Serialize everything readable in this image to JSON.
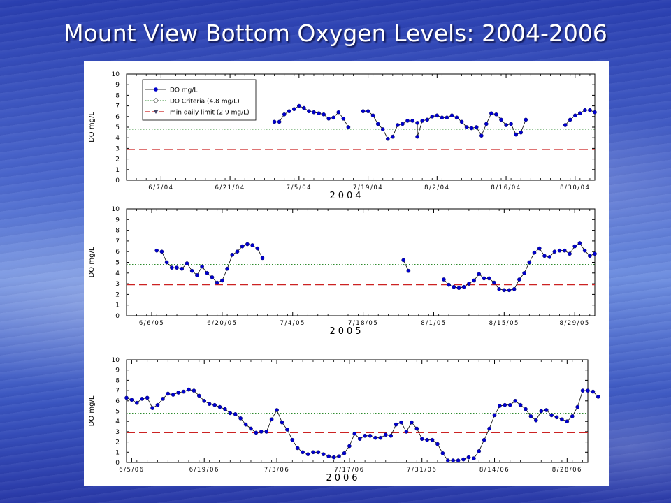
{
  "slide": {
    "title": "Mount View Bottom Oxygen Levels: 2004-2006"
  },
  "colors": {
    "series": "#0000cc",
    "criteria": "#2e8b2e",
    "limit": "#cc2222",
    "axis": "#000000"
  },
  "legend": {
    "placement": "top-left",
    "entries": [
      "DO mg/L",
      "DO Criteria (4.8 mg/L)",
      "min daily limit (2.9 mg/L)"
    ]
  },
  "chart_data": [
    {
      "type": "line",
      "year_label": "2004",
      "ylabel": "DO mg/L",
      "ylim": [
        0,
        10
      ],
      "yticks": [
        "0",
        "1",
        "2",
        "3",
        "4",
        "5",
        "6",
        "7",
        "8",
        "9",
        "10"
      ],
      "xlim": [
        "2004-05-31",
        "2004-09-03"
      ],
      "xticks": [
        {
          "date": "2004-06-07",
          "label": "6/7/04"
        },
        {
          "date": "2004-06-21",
          "label": "6/21/04"
        },
        {
          "date": "2004-07-05",
          "label": "7/5/04"
        },
        {
          "date": "2004-07-19",
          "label": "7/19/04"
        },
        {
          "date": "2004-08-02",
          "label": "8/2/04"
        },
        {
          "date": "2004-08-16",
          "label": "8/16/04"
        },
        {
          "date": "2004-08-30",
          "label": "8/30/04"
        }
      ],
      "criteria": 4.8,
      "min_limit": 2.9,
      "segments": [
        [
          [
            "2004-06-30",
            5.5
          ],
          [
            "2004-07-01",
            5.5
          ],
          [
            "2004-07-02",
            6.2
          ],
          [
            "2004-07-03",
            6.5
          ],
          [
            "2004-07-04",
            6.7
          ],
          [
            "2004-07-05",
            7.0
          ],
          [
            "2004-07-06",
            6.8
          ],
          [
            "2004-07-07",
            6.5
          ],
          [
            "2004-07-08",
            6.4
          ],
          [
            "2004-07-09",
            6.3
          ],
          [
            "2004-07-10",
            6.2
          ],
          [
            "2004-07-11",
            5.8
          ],
          [
            "2004-07-12",
            5.9
          ],
          [
            "2004-07-13",
            6.4
          ],
          [
            "2004-07-14",
            5.8
          ],
          [
            "2004-07-15",
            5.0
          ]
        ],
        [
          [
            "2004-07-18",
            6.5
          ],
          [
            "2004-07-19",
            6.5
          ],
          [
            "2004-07-20",
            6.1
          ],
          [
            "2004-07-21",
            5.3
          ],
          [
            "2004-07-22",
            4.8
          ],
          [
            "2004-07-23",
            3.9
          ],
          [
            "2004-07-24",
            4.1
          ],
          [
            "2004-07-25",
            5.2
          ],
          [
            "2004-07-26",
            5.3
          ],
          [
            "2004-07-27",
            5.6
          ],
          [
            "2004-07-28",
            5.6
          ],
          [
            "2004-07-29",
            5.4
          ],
          [
            "2004-07-29",
            4.1
          ],
          [
            "2004-07-30",
            5.6
          ],
          [
            "2004-07-31",
            5.7
          ],
          [
            "2004-08-01",
            6.0
          ],
          [
            "2004-08-02",
            6.1
          ],
          [
            "2004-08-03",
            5.9
          ],
          [
            "2004-08-04",
            5.9
          ],
          [
            "2004-08-05",
            6.1
          ],
          [
            "2004-08-06",
            5.9
          ],
          [
            "2004-08-07",
            5.5
          ],
          [
            "2004-08-08",
            5.0
          ],
          [
            "2004-08-09",
            4.9
          ],
          [
            "2004-08-10",
            5.0
          ],
          [
            "2004-08-11",
            4.2
          ],
          [
            "2004-08-12",
            5.3
          ],
          [
            "2004-08-13",
            6.3
          ],
          [
            "2004-08-14",
            6.2
          ],
          [
            "2004-08-15",
            5.7
          ],
          [
            "2004-08-16",
            5.2
          ],
          [
            "2004-08-17",
            5.3
          ],
          [
            "2004-08-18",
            4.3
          ],
          [
            "2004-08-19",
            4.5
          ],
          [
            "2004-08-20",
            5.7
          ]
        ],
        [
          [
            "2004-08-28",
            5.2
          ],
          [
            "2004-08-29",
            5.7
          ],
          [
            "2004-08-30",
            6.1
          ],
          [
            "2004-08-31",
            6.3
          ],
          [
            "2004-09-01",
            6.6
          ],
          [
            "2004-09-02",
            6.6
          ],
          [
            "2004-09-03",
            6.4
          ]
        ]
      ]
    },
    {
      "type": "line",
      "year_label": "2005",
      "ylabel": "DO mg/L",
      "ylim": [
        0,
        10
      ],
      "yticks": [
        "0",
        "1",
        "2",
        "3",
        "4",
        "5",
        "6",
        "7",
        "8",
        "9",
        "10"
      ],
      "xlim": [
        "2005-06-01",
        "2005-09-02"
      ],
      "xticks": [
        {
          "date": "2005-06-06",
          "label": "6/6/05"
        },
        {
          "date": "2005-06-20",
          "label": "6/20/05"
        },
        {
          "date": "2005-07-04",
          "label": "7/4/05"
        },
        {
          "date": "2005-07-18",
          "label": "7/18/05"
        },
        {
          "date": "2005-08-01",
          "label": "8/1/05"
        },
        {
          "date": "2005-08-15",
          "label": "8/15/05"
        },
        {
          "date": "2005-08-29",
          "label": "8/29/05"
        }
      ],
      "criteria": 4.8,
      "min_limit": 2.9,
      "segments": [
        [
          [
            "2005-06-07",
            6.1
          ],
          [
            "2005-06-08",
            6.0
          ],
          [
            "2005-06-09",
            5.0
          ],
          [
            "2005-06-10",
            4.5
          ],
          [
            "2005-06-11",
            4.5
          ],
          [
            "2005-06-12",
            4.4
          ],
          [
            "2005-06-13",
            4.9
          ],
          [
            "2005-06-14",
            4.2
          ],
          [
            "2005-06-15",
            3.8
          ],
          [
            "2005-06-16",
            4.6
          ],
          [
            "2005-06-17",
            4.0
          ],
          [
            "2005-06-18",
            3.6
          ],
          [
            "2005-06-19",
            3.1
          ],
          [
            "2005-06-20",
            3.3
          ],
          [
            "2005-06-21",
            4.4
          ],
          [
            "2005-06-22",
            5.7
          ],
          [
            "2005-06-23",
            6.0
          ],
          [
            "2005-06-24",
            6.5
          ],
          [
            "2005-06-25",
            6.7
          ],
          [
            "2005-06-26",
            6.6
          ],
          [
            "2005-06-27",
            6.3
          ],
          [
            "2005-06-28",
            5.4
          ]
        ],
        [
          [
            "2005-07-26",
            5.2
          ],
          [
            "2005-07-27",
            4.2
          ]
        ],
        [
          [
            "2005-08-03",
            3.4
          ],
          [
            "2005-08-04",
            2.9
          ],
          [
            "2005-08-05",
            2.7
          ],
          [
            "2005-08-06",
            2.6
          ],
          [
            "2005-08-07",
            2.7
          ],
          [
            "2005-08-08",
            3.0
          ],
          [
            "2005-08-09",
            3.3
          ],
          [
            "2005-08-10",
            3.9
          ],
          [
            "2005-08-11",
            3.5
          ],
          [
            "2005-08-12",
            3.5
          ],
          [
            "2005-08-13",
            3.1
          ],
          [
            "2005-08-14",
            2.5
          ],
          [
            "2005-08-15",
            2.4
          ],
          [
            "2005-08-16",
            2.4
          ],
          [
            "2005-08-17",
            2.5
          ],
          [
            "2005-08-18",
            3.4
          ],
          [
            "2005-08-19",
            4.0
          ],
          [
            "2005-08-20",
            5.0
          ],
          [
            "2005-08-21",
            5.9
          ],
          [
            "2005-08-22",
            6.3
          ],
          [
            "2005-08-23",
            5.6
          ],
          [
            "2005-08-24",
            5.5
          ],
          [
            "2005-08-25",
            6.0
          ],
          [
            "2005-08-26",
            6.1
          ],
          [
            "2005-08-27",
            6.1
          ],
          [
            "2005-08-28",
            5.8
          ],
          [
            "2005-08-29",
            6.5
          ],
          [
            "2005-08-30",
            6.8
          ],
          [
            "2005-08-31",
            6.1
          ],
          [
            "2005-09-01",
            5.6
          ],
          [
            "2005-09-02",
            5.8
          ]
        ]
      ]
    },
    {
      "type": "line",
      "year_label": "2006",
      "ylabel": "DO mg/L",
      "ylim": [
        0,
        10
      ],
      "yticks": [
        "0",
        "1",
        "2",
        "3",
        "4",
        "5",
        "6",
        "7",
        "8",
        "9",
        "10"
      ],
      "xlim": [
        "2006-06-04",
        "2006-09-01"
      ],
      "xticks": [
        {
          "date": "2006-06-05",
          "label": "6/5/06"
        },
        {
          "date": "2006-06-19",
          "label": "6/19/06"
        },
        {
          "date": "2006-07-03",
          "label": "7/3/06"
        },
        {
          "date": "2006-07-17",
          "label": "7/17/06"
        },
        {
          "date": "2006-07-31",
          "label": "7/31/06"
        },
        {
          "date": "2006-08-14",
          "label": "8/14/06"
        },
        {
          "date": "2006-08-28",
          "label": "8/28/06"
        }
      ],
      "criteria": 4.8,
      "min_limit": 2.9,
      "segments": [
        [
          [
            "2006-06-04",
            6.3
          ],
          [
            "2006-06-05",
            6.1
          ],
          [
            "2006-06-06",
            5.8
          ],
          [
            "2006-06-07",
            6.2
          ],
          [
            "2006-06-08",
            6.3
          ],
          [
            "2006-06-09",
            5.3
          ],
          [
            "2006-06-10",
            5.6
          ],
          [
            "2006-06-11",
            6.2
          ],
          [
            "2006-06-12",
            6.7
          ],
          [
            "2006-06-13",
            6.6
          ],
          [
            "2006-06-14",
            6.8
          ],
          [
            "2006-06-15",
            6.9
          ],
          [
            "2006-06-16",
            7.1
          ],
          [
            "2006-06-17",
            7.0
          ],
          [
            "2006-06-18",
            6.5
          ],
          [
            "2006-06-19",
            6.0
          ],
          [
            "2006-06-20",
            5.7
          ],
          [
            "2006-06-21",
            5.6
          ],
          [
            "2006-06-22",
            5.4
          ],
          [
            "2006-06-23",
            5.2
          ],
          [
            "2006-06-24",
            4.8
          ],
          [
            "2006-06-25",
            4.7
          ],
          [
            "2006-06-26",
            4.3
          ],
          [
            "2006-06-27",
            3.7
          ],
          [
            "2006-06-28",
            3.3
          ],
          [
            "2006-06-29",
            2.9
          ],
          [
            "2006-06-30",
            3.0
          ],
          [
            "2006-07-01",
            3.0
          ],
          [
            "2006-07-02",
            4.2
          ],
          [
            "2006-07-03",
            5.1
          ],
          [
            "2006-07-04",
            3.9
          ],
          [
            "2006-07-05",
            3.2
          ],
          [
            "2006-07-06",
            2.2
          ],
          [
            "2006-07-07",
            1.4
          ],
          [
            "2006-07-08",
            1.0
          ],
          [
            "2006-07-09",
            0.8
          ],
          [
            "2006-07-10",
            1.0
          ],
          [
            "2006-07-11",
            1.0
          ],
          [
            "2006-07-12",
            0.8
          ],
          [
            "2006-07-13",
            0.6
          ],
          [
            "2006-07-14",
            0.5
          ],
          [
            "2006-07-15",
            0.6
          ],
          [
            "2006-07-16",
            0.9
          ],
          [
            "2006-07-17",
            1.6
          ],
          [
            "2006-07-18",
            2.8
          ],
          [
            "2006-07-19",
            2.3
          ],
          [
            "2006-07-20",
            2.6
          ],
          [
            "2006-07-21",
            2.6
          ],
          [
            "2006-07-22",
            2.4
          ],
          [
            "2006-07-23",
            2.4
          ],
          [
            "2006-07-24",
            2.7
          ],
          [
            "2006-07-25",
            2.6
          ],
          [
            "2006-07-26",
            3.7
          ],
          [
            "2006-07-27",
            3.9
          ],
          [
            "2006-07-28",
            3.0
          ],
          [
            "2006-07-29",
            3.9
          ],
          [
            "2006-07-30",
            3.3
          ],
          [
            "2006-07-31",
            2.3
          ],
          [
            "2006-08-01",
            2.2
          ],
          [
            "2006-08-02",
            2.2
          ],
          [
            "2006-08-03",
            1.8
          ],
          [
            "2006-08-04",
            0.9
          ],
          [
            "2006-08-05",
            0.2
          ],
          [
            "2006-08-06",
            0.2
          ],
          [
            "2006-08-07",
            0.2
          ],
          [
            "2006-08-08",
            0.3
          ],
          [
            "2006-08-09",
            0.5
          ],
          [
            "2006-08-10",
            0.4
          ],
          [
            "2006-08-11",
            1.1
          ],
          [
            "2006-08-12",
            2.2
          ],
          [
            "2006-08-13",
            3.3
          ],
          [
            "2006-08-14",
            4.6
          ],
          [
            "2006-08-15",
            5.5
          ],
          [
            "2006-08-16",
            5.6
          ],
          [
            "2006-08-17",
            5.6
          ],
          [
            "2006-08-18",
            6.0
          ],
          [
            "2006-08-19",
            5.6
          ],
          [
            "2006-08-20",
            5.2
          ],
          [
            "2006-08-21",
            4.5
          ],
          [
            "2006-08-22",
            4.1
          ],
          [
            "2006-08-23",
            5.0
          ],
          [
            "2006-08-24",
            5.1
          ],
          [
            "2006-08-25",
            4.6
          ],
          [
            "2006-08-26",
            4.4
          ],
          [
            "2006-08-27",
            4.2
          ],
          [
            "2006-08-28",
            4.0
          ],
          [
            "2006-08-29",
            4.5
          ],
          [
            "2006-08-30",
            5.4
          ],
          [
            "2006-08-31",
            7.0
          ],
          [
            "2006-09-01",
            7.0
          ],
          [
            "2006-09-02",
            6.9
          ],
          [
            "2006-09-03",
            6.4
          ]
        ]
      ]
    }
  ]
}
